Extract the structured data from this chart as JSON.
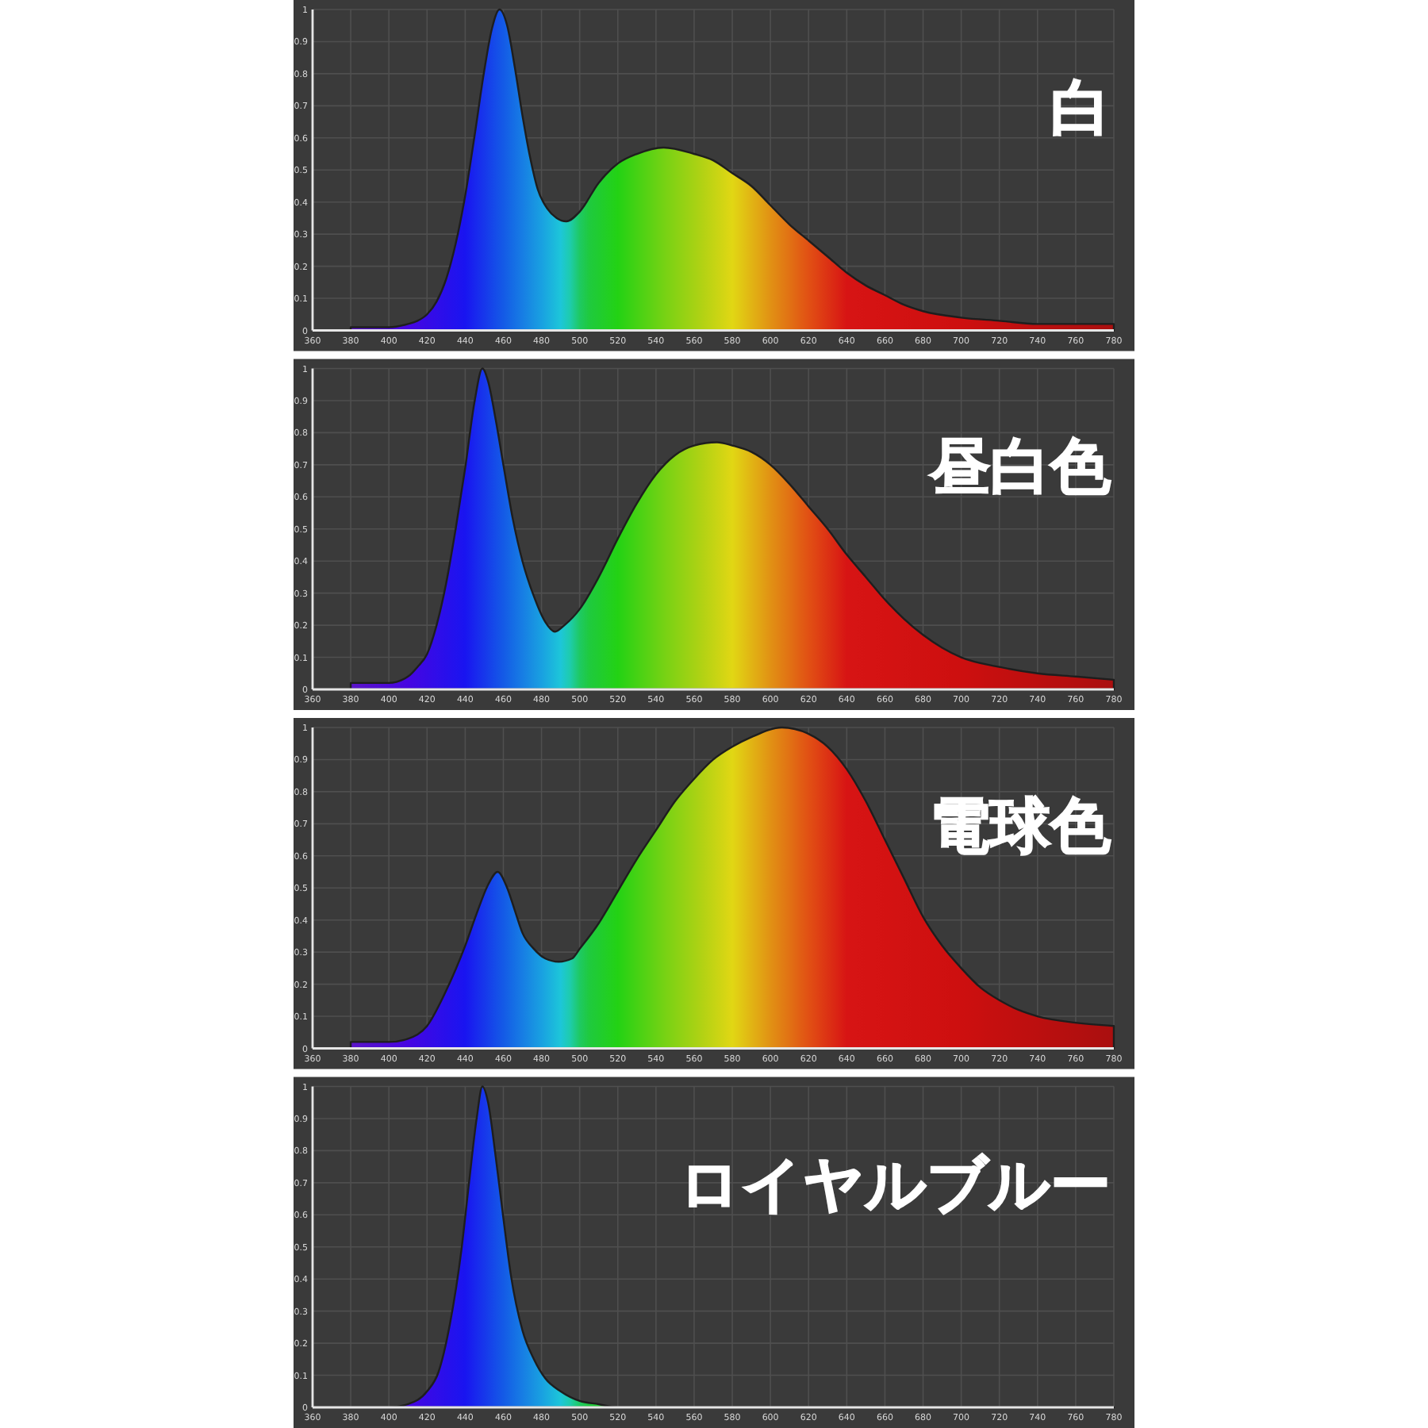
{
  "chart_data": [
    {
      "type": "area",
      "title": "白",
      "xlim": [
        360,
        780
      ],
      "ylim": [
        0,
        1
      ],
      "xticks": [
        360,
        380,
        400,
        420,
        440,
        460,
        480,
        500,
        520,
        540,
        560,
        580,
        600,
        620,
        640,
        660,
        680,
        700,
        720,
        740,
        760,
        780
      ],
      "yticks": [
        0,
        0.1,
        0.2,
        0.3,
        0.4,
        0.5,
        0.6,
        0.7,
        0.8,
        0.9,
        1
      ],
      "grid": true,
      "x": [
        380,
        400,
        410,
        415,
        420,
        425,
        430,
        435,
        440,
        445,
        450,
        454,
        458,
        462,
        466,
        470,
        474,
        478,
        483,
        488,
        493,
        500,
        510,
        520,
        530,
        544,
        560,
        570,
        580,
        590,
        600,
        610,
        620,
        630,
        640,
        650,
        660,
        670,
        680,
        700,
        720,
        740,
        780
      ],
      "values": [
        0.01,
        0.01,
        0.02,
        0.03,
        0.05,
        0.09,
        0.16,
        0.27,
        0.42,
        0.61,
        0.81,
        0.94,
        1.0,
        0.95,
        0.82,
        0.67,
        0.54,
        0.44,
        0.38,
        0.35,
        0.34,
        0.37,
        0.46,
        0.52,
        0.55,
        0.57,
        0.55,
        0.53,
        0.49,
        0.45,
        0.39,
        0.33,
        0.28,
        0.23,
        0.18,
        0.14,
        0.11,
        0.08,
        0.06,
        0.04,
        0.03,
        0.02,
        0.02
      ]
    },
    {
      "type": "area",
      "title": "昼白色",
      "xlim": [
        360,
        780
      ],
      "ylim": [
        0,
        1
      ],
      "xticks": [
        360,
        380,
        400,
        420,
        440,
        460,
        480,
        500,
        520,
        540,
        560,
        580,
        600,
        620,
        640,
        660,
        680,
        700,
        720,
        740,
        760,
        780
      ],
      "yticks": [
        0,
        0.1,
        0.2,
        0.3,
        0.4,
        0.5,
        0.6,
        0.7,
        0.8,
        0.9,
        1
      ],
      "grid": true,
      "x": [
        380,
        400,
        410,
        415,
        420,
        425,
        430,
        435,
        440,
        445,
        449,
        452,
        456,
        460,
        465,
        470,
        476,
        482,
        487,
        492,
        500,
        510,
        520,
        530,
        540,
        550,
        560,
        572,
        580,
        590,
        600,
        610,
        620,
        630,
        640,
        650,
        660,
        670,
        680,
        690,
        700,
        720,
        740,
        760,
        780
      ],
      "values": [
        0.02,
        0.02,
        0.04,
        0.07,
        0.11,
        0.2,
        0.33,
        0.5,
        0.69,
        0.9,
        1.0,
        0.96,
        0.84,
        0.7,
        0.53,
        0.4,
        0.29,
        0.21,
        0.18,
        0.2,
        0.25,
        0.35,
        0.47,
        0.58,
        0.67,
        0.73,
        0.76,
        0.77,
        0.76,
        0.74,
        0.7,
        0.64,
        0.57,
        0.5,
        0.42,
        0.35,
        0.28,
        0.22,
        0.17,
        0.13,
        0.1,
        0.07,
        0.05,
        0.04,
        0.03
      ]
    },
    {
      "type": "area",
      "title": "電球色",
      "xlim": [
        360,
        780
      ],
      "ylim": [
        0,
        1
      ],
      "xticks": [
        360,
        380,
        400,
        420,
        440,
        460,
        480,
        500,
        520,
        540,
        560,
        580,
        600,
        620,
        640,
        660,
        680,
        700,
        720,
        740,
        760,
        780
      ],
      "yticks": [
        0,
        0.1,
        0.2,
        0.3,
        0.4,
        0.5,
        0.6,
        0.7,
        0.8,
        0.9,
        1
      ],
      "grid": true,
      "x": [
        380,
        400,
        410,
        420,
        430,
        440,
        446,
        452,
        457,
        462,
        466,
        470,
        476,
        482,
        489,
        496,
        500,
        510,
        520,
        530,
        540,
        550,
        560,
        570,
        580,
        590,
        606,
        620,
        630,
        640,
        650,
        660,
        670,
        680,
        690,
        700,
        710,
        720,
        730,
        740,
        760,
        780
      ],
      "values": [
        0.02,
        0.02,
        0.03,
        0.07,
        0.18,
        0.32,
        0.42,
        0.51,
        0.55,
        0.5,
        0.43,
        0.36,
        0.31,
        0.28,
        0.27,
        0.28,
        0.31,
        0.39,
        0.49,
        0.59,
        0.68,
        0.77,
        0.84,
        0.9,
        0.94,
        0.97,
        1.0,
        0.98,
        0.94,
        0.87,
        0.77,
        0.65,
        0.53,
        0.41,
        0.32,
        0.25,
        0.19,
        0.15,
        0.12,
        0.1,
        0.08,
        0.07
      ]
    },
    {
      "type": "area",
      "title": "ロイヤルブルー",
      "xlim": [
        360,
        780
      ],
      "ylim": [
        0,
        1
      ],
      "xticks": [
        360,
        380,
        400,
        420,
        440,
        460,
        480,
        500,
        520,
        540,
        560,
        580,
        600,
        620,
        640,
        660,
        680,
        700,
        720,
        740,
        760,
        780
      ],
      "yticks": [
        0,
        0.1,
        0.2,
        0.3,
        0.4,
        0.5,
        0.6,
        0.7,
        0.8,
        0.9,
        1
      ],
      "grid": true,
      "x": [
        380,
        400,
        410,
        420,
        426,
        432,
        438,
        442,
        446,
        449,
        452,
        456,
        460,
        464,
        470,
        476,
        482,
        490,
        500,
        510,
        520,
        540,
        780
      ],
      "values": [
        0,
        0,
        0.01,
        0.05,
        0.11,
        0.26,
        0.49,
        0.7,
        0.9,
        1.0,
        0.95,
        0.78,
        0.59,
        0.41,
        0.24,
        0.15,
        0.09,
        0.05,
        0.02,
        0.01,
        0,
        0,
        0
      ]
    }
  ]
}
